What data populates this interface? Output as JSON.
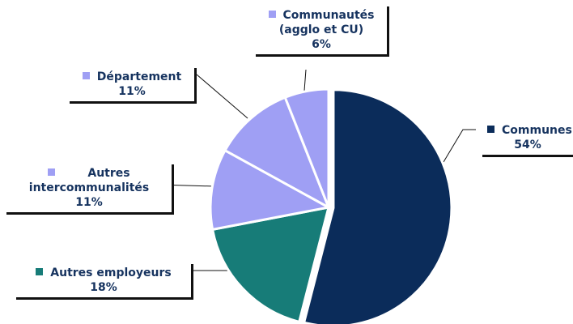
{
  "chart_data": {
    "type": "pie",
    "slices": [
      {
        "label": "Communes",
        "value": 54,
        "percent_label": "54%",
        "color": "#0b2c5a"
      },
      {
        "label": "Autres employeurs",
        "value": 18,
        "percent_label": "18%",
        "color": "#177c78"
      },
      {
        "label": "Autres intercommunalités",
        "value": 11,
        "percent_label": "11%",
        "color": "#9f9ff4"
      },
      {
        "label": "Département",
        "value": 11,
        "percent_label": "11%",
        "color": "#9f9ff4"
      },
      {
        "label": "Communautés (agglo et CU)",
        "value": 6,
        "percent_label": "6%",
        "color": "#9f9ff4"
      }
    ],
    "start_angle_deg": 0,
    "direction": "clockwise",
    "exploded_slice": "Communes",
    "slice_border_color": "#ffffff"
  },
  "callouts": {
    "communes": {
      "line1": "Communes",
      "pct": "54%"
    },
    "autres_employeurs": {
      "line1": "Autres employeurs",
      "pct": "18%"
    },
    "autres_intercommunalites": {
      "line1": "Autres",
      "line2": "intercommunalités",
      "pct": "11%"
    },
    "departement": {
      "line1": "Département",
      "pct": "11%"
    },
    "communautes": {
      "line1": "Communautés",
      "line2": "(agglo et CU)",
      "pct": "6%"
    }
  }
}
